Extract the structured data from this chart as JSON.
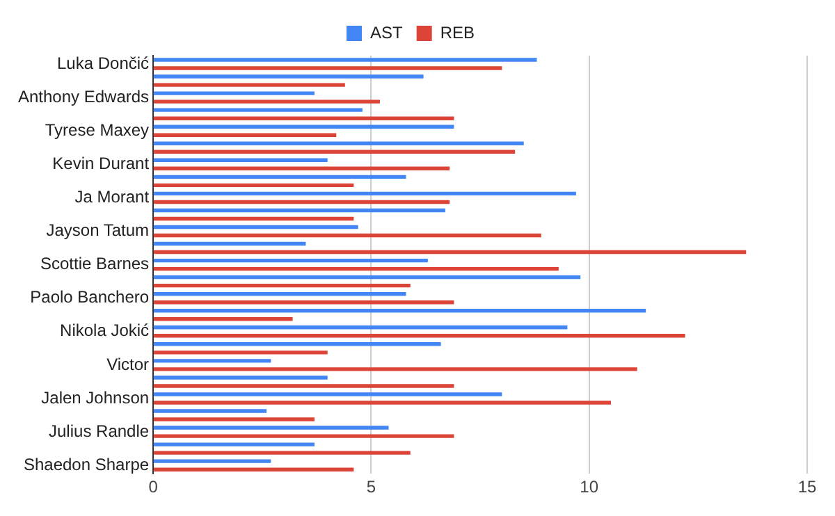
{
  "chart_data": {
    "type": "bar",
    "orientation": "horizontal",
    "categories": [
      "Luka Dončić",
      null,
      "Anthony Edwards",
      null,
      "Tyrese Maxey",
      null,
      "Kevin Durant",
      null,
      "Ja Morant",
      null,
      "Jayson Tatum",
      null,
      "Scottie Barnes",
      null,
      "Paolo Banchero",
      null,
      "Nikola Jokić",
      null,
      "Victor",
      null,
      "Jalen Johnson",
      null,
      "Julius Randle",
      null,
      "Shaedon Sharpe"
    ],
    "series": [
      {
        "name": "AST",
        "color": "#4285f4",
        "values": [
          8.8,
          6.2,
          3.7,
          4.8,
          6.9,
          8.5,
          4.0,
          5.8,
          9.7,
          6.7,
          4.7,
          3.5,
          6.3,
          9.8,
          5.8,
          11.3,
          9.5,
          6.6,
          2.7,
          4.0,
          8.0,
          2.6,
          5.4,
          3.7,
          2.7
        ]
      },
      {
        "name": "REB",
        "color": "#db4437",
        "values": [
          8.0,
          4.4,
          5.2,
          6.9,
          4.2,
          8.3,
          6.8,
          4.6,
          6.8,
          4.6,
          8.9,
          13.6,
          9.3,
          5.9,
          6.9,
          3.2,
          12.2,
          4.0,
          11.1,
          6.9,
          10.5,
          3.7,
          6.9,
          5.9,
          4.6
        ]
      }
    ],
    "xlim": [
      0,
      15
    ],
    "xticks": [
      0,
      5,
      10,
      15
    ],
    "grid": "x",
    "legend": "top"
  }
}
